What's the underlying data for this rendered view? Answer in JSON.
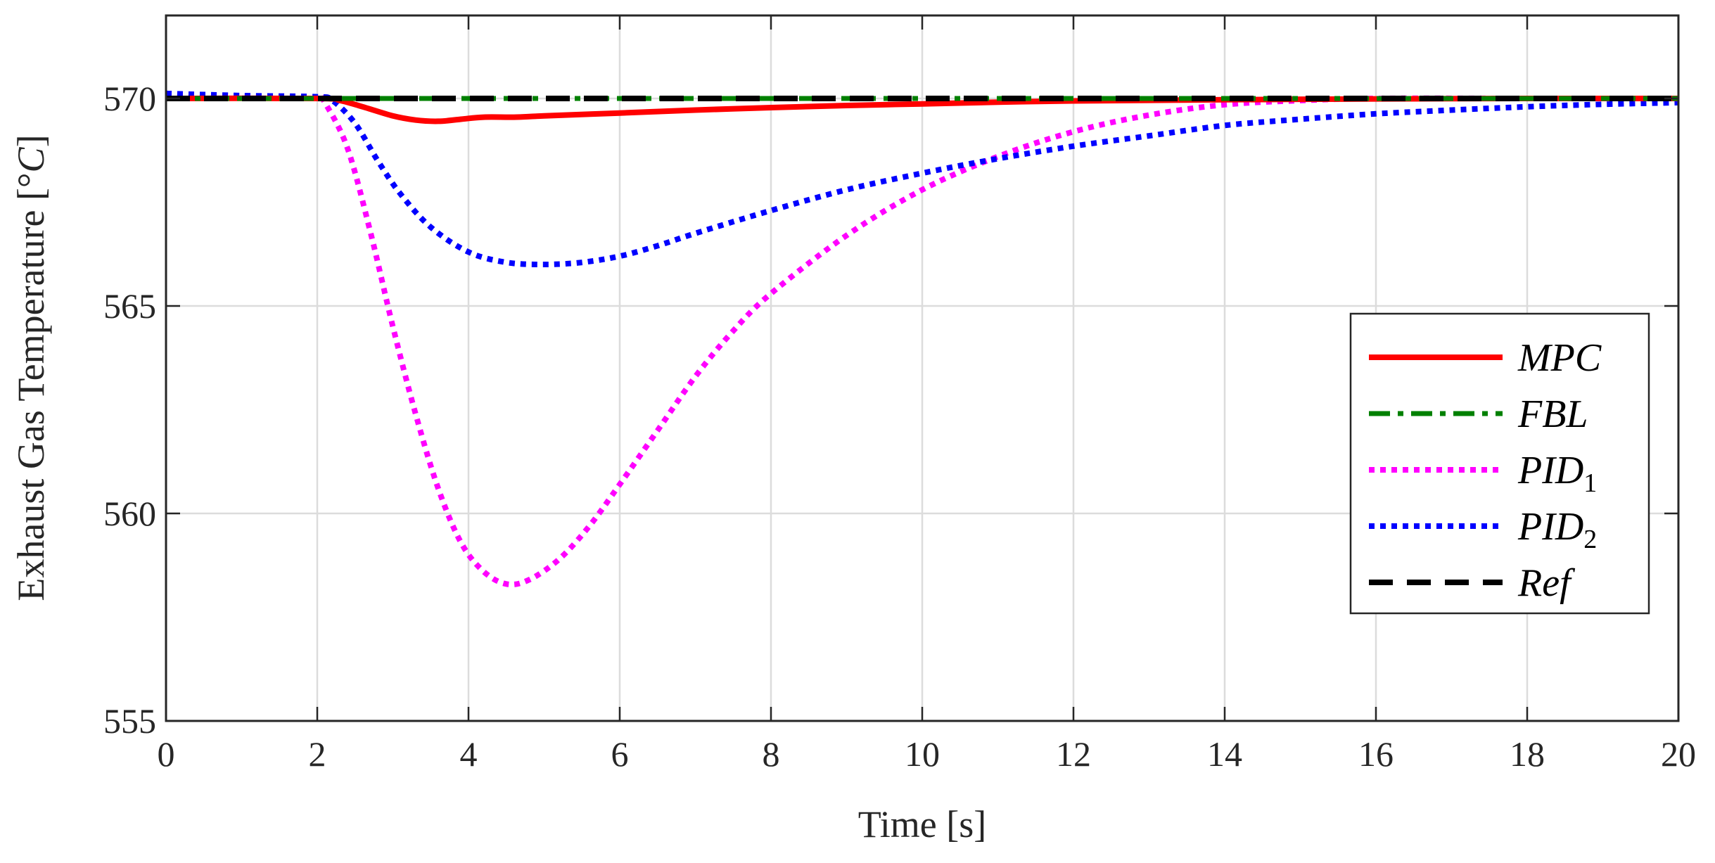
{
  "chart_data": {
    "type": "line",
    "title": "",
    "xlabel": "Time [s]",
    "ylabel_prefix": "Exhaust Gas Temperature [",
    "ylabel_unit_symbol": "°",
    "ylabel_unit_letter": "C",
    "ylabel_suffix": "]",
    "xlim": [
      0,
      20
    ],
    "ylim": [
      555,
      572
    ],
    "xticks": [
      0,
      2,
      4,
      6,
      8,
      10,
      12,
      14,
      16,
      18,
      20
    ],
    "yticks": [
      555,
      560,
      565,
      570
    ],
    "grid": true,
    "legend_position": "right",
    "series": [
      {
        "name": "MPC",
        "color": "#ff0000",
        "style": "solid",
        "x": [
          0,
          2,
          2.3,
          2.6,
          3.0,
          3.3,
          3.6,
          3.9,
          4.2,
          4.6,
          5.0,
          6.0,
          7.0,
          8.0,
          9.0,
          10.0,
          11.0,
          12.0,
          14.0,
          16.0,
          18.0,
          20.0
        ],
        "y": [
          570.0,
          570.0,
          569.95,
          569.8,
          569.58,
          569.48,
          569.45,
          569.5,
          569.55,
          569.55,
          569.58,
          569.65,
          569.72,
          569.78,
          569.83,
          569.87,
          569.91,
          569.94,
          569.97,
          569.99,
          570.0,
          570.0
        ]
      },
      {
        "name": "FBL",
        "color": "#008000",
        "style": "dashdot",
        "x": [
          0,
          20
        ],
        "y": [
          570.0,
          570.0
        ]
      },
      {
        "name": "PID",
        "subscript": "1",
        "color": "#ff00ff",
        "style": "dotted",
        "x": [
          0,
          1.0,
          2.0,
          2.1,
          2.4,
          2.7,
          3.0,
          3.3,
          3.6,
          3.9,
          4.2,
          4.5,
          4.8,
          5.2,
          5.6,
          6.0,
          6.5,
          7.0,
          7.5,
          8.0,
          9.0,
          10.0,
          11.0,
          12.0,
          13.0,
          14.0,
          15.0,
          16.0,
          18.0,
          20.0
        ],
        "y": [
          570.12,
          570.06,
          570.02,
          569.9,
          568.8,
          566.8,
          564.5,
          562.4,
          560.6,
          559.3,
          558.6,
          558.3,
          558.4,
          558.9,
          559.7,
          560.7,
          562.0,
          563.3,
          564.4,
          565.3,
          566.7,
          567.8,
          568.6,
          569.2,
          569.6,
          569.85,
          569.95,
          570.0,
          570.0,
          570.0
        ]
      },
      {
        "name": "PID",
        "subscript": "2",
        "color": "#0000ff",
        "style": "dotted",
        "x": [
          0,
          1.0,
          2.0,
          2.2,
          2.5,
          2.8,
          3.1,
          3.5,
          4.0,
          4.5,
          5.0,
          5.5,
          6.0,
          6.5,
          7.0,
          8.0,
          9.0,
          10.0,
          11.0,
          12.0,
          13.0,
          14.0,
          15.0,
          16.0,
          17.0,
          18.0,
          19.0,
          20.0
        ],
        "y": [
          570.12,
          570.07,
          570.04,
          569.95,
          569.4,
          568.5,
          567.7,
          566.9,
          566.3,
          566.05,
          566.0,
          566.05,
          566.2,
          566.45,
          566.75,
          567.3,
          567.8,
          568.2,
          568.55,
          568.85,
          569.1,
          569.35,
          569.5,
          569.63,
          569.72,
          569.8,
          569.86,
          569.9
        ]
      },
      {
        "name": "Ref",
        "color": "#000000",
        "style": "dashed",
        "x": [
          0,
          20
        ],
        "y": [
          570.0,
          570.0
        ]
      }
    ]
  }
}
